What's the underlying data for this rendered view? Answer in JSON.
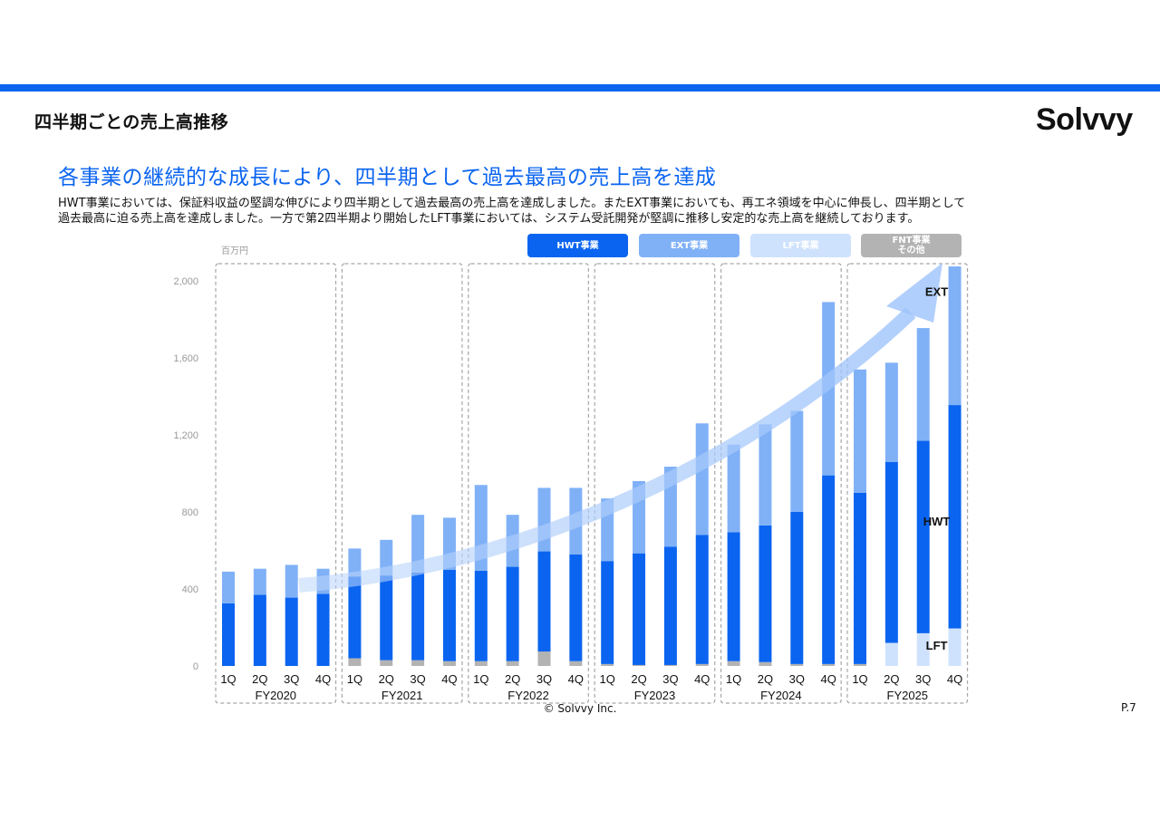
{
  "header": {
    "title": "四半期ごとの売上高推移",
    "brand": "Solvvy"
  },
  "headline": "各事業の継続的な成長により、四半期として過去最高の売上高を達成",
  "description": {
    "line1": "HWT事業においては、保証料収益の堅調な伸びにより四半期として過去最高の売上高を達成しました。またEXT事業においても、再エネ領域を中心に伸長し、四半期として",
    "line2": "過去最高に迫る売上高を達成しました。一方で第2四半期より開始したLFT事業においては、システム受託開発が堅調に推移し安定的な売上高を継続しております。"
  },
  "legend": {
    "hwt": "HWT事業",
    "ext": "EXT事業",
    "lft": "LFT事業",
    "fnt_line1": "FNT事業",
    "fnt_line2": "その他"
  },
  "colors": {
    "hwt": "#0a64f0",
    "ext": "#80b1f7",
    "lft": "#cfe2fd",
    "fnt": "#b3b3b3",
    "accent": "#0a64f0"
  },
  "chart_data": {
    "type": "bar",
    "stacked": true,
    "unit": "百万円",
    "ylim": [
      0,
      2000
    ],
    "yticks": [
      0,
      400,
      800,
      1200,
      1600,
      2000
    ],
    "yticks_labels": [
      "0",
      "400",
      "800",
      "1,200",
      "1,600",
      "2,000"
    ],
    "quarters": [
      "1Q",
      "2Q",
      "3Q",
      "4Q"
    ],
    "fiscal_years": [
      "FY2020",
      "FY2021",
      "FY2022",
      "FY2023",
      "FY2024",
      "FY2025"
    ],
    "series": [
      {
        "name": "FNT事業 その他",
        "key": "fnt",
        "values": [
          0,
          0,
          0,
          0,
          40,
          30,
          30,
          25,
          25,
          25,
          75,
          25,
          10,
          5,
          5,
          10,
          25,
          20,
          10,
          10,
          10,
          0,
          0,
          0
        ]
      },
      {
        "name": "LFT事業",
        "key": "lft",
        "values": [
          0,
          0,
          0,
          0,
          0,
          0,
          0,
          0,
          0,
          0,
          0,
          0,
          0,
          0,
          0,
          0,
          0,
          0,
          0,
          0,
          0,
          120,
          170,
          195
        ]
      },
      {
        "name": "HWT事業",
        "key": "hwt",
        "values": [
          325,
          370,
          355,
          375,
          425,
          440,
          455,
          475,
          470,
          490,
          520,
          555,
          535,
          580,
          615,
          670,
          670,
          710,
          790,
          980,
          890,
          940,
          1000,
          1160
        ]
      },
      {
        "name": "EXT事業",
        "key": "ext",
        "values": [
          165,
          135,
          170,
          130,
          145,
          185,
          300,
          270,
          445,
          270,
          330,
          345,
          325,
          375,
          415,
          580,
          455,
          525,
          525,
          900,
          640,
          515,
          585,
          720
        ]
      }
    ],
    "segment_labels": [
      "EXT",
      "HWT",
      "LFT"
    ]
  },
  "footer": {
    "copyright": "© Solvvy Inc.",
    "page": "P.7"
  }
}
